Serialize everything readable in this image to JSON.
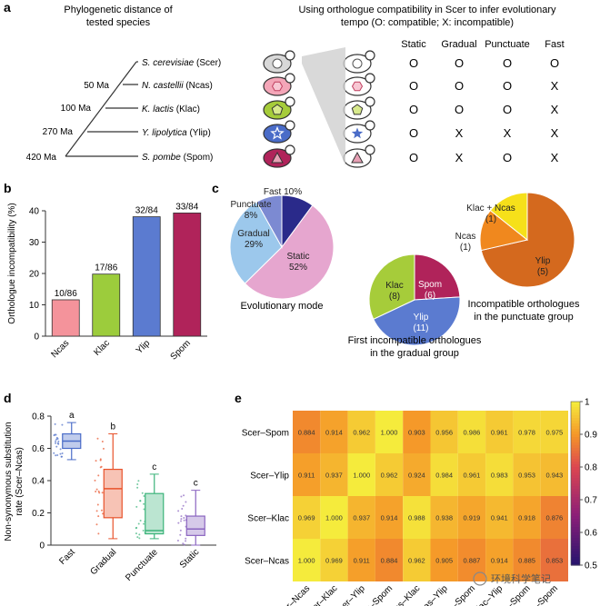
{
  "panel_a": {
    "letter": "a",
    "title_left_1": "Phylogenetic distance of",
    "title_left_2": "tested species",
    "title_right_1": "Using orthologue compatibility in Scer to infer evolutionary",
    "title_right_2": "tempo (O: compatible; X: incompatible)",
    "times": [
      "50 Ma",
      "100 Ma",
      "270 Ma",
      "420 Ma"
    ],
    "species": [
      {
        "italic": "S. cerevisiae",
        "abbr": " (Scer)"
      },
      {
        "italic": "N. castellii",
        "abbr": " (Ncas)"
      },
      {
        "italic": "K. lactis",
        "abbr": " (Klac)"
      },
      {
        "italic": "Y. lipolytica",
        "abbr": " (Ylip)"
      },
      {
        "italic": "S. pombe",
        "abbr": " (Spom)"
      }
    ],
    "columns": [
      "Static",
      "Gradual",
      "Punctuate",
      "Fast"
    ],
    "table": [
      [
        "O",
        "O",
        "O",
        "O"
      ],
      [
        "O",
        "O",
        "O",
        "X"
      ],
      [
        "O",
        "O",
        "O",
        "X"
      ],
      [
        "O",
        "X",
        "X",
        "X"
      ],
      [
        "O",
        "X",
        "O",
        "X"
      ]
    ],
    "cell_colors": [
      "#d8d8d8",
      "#f4a6b8",
      "#a6cc3a",
      "#4a6cc8",
      "#b0235a"
    ]
  },
  "panel_b": {
    "letter": "b",
    "chart_data": {
      "type": "bar",
      "categories": [
        "Ncas",
        "Klac",
        "Ylip",
        "Spom"
      ],
      "values": [
        11.6,
        19.8,
        38.1,
        39.3
      ],
      "bar_labels": [
        "10/86",
        "17/86",
        "32/84",
        "33/84"
      ],
      "colors": [
        "#f4939b",
        "#9ccc3c",
        "#5b7bd0",
        "#b0235a"
      ],
      "ylabel": "Orthologue incompatibility (%)",
      "ylim": [
        0,
        40
      ],
      "yticks": [
        "0",
        "10",
        "20",
        "30",
        "40"
      ]
    }
  },
  "panel_c": {
    "letter": "c",
    "pies": [
      {
        "caption": "Evolutionary mode",
        "chart_data": {
          "type": "pie",
          "labels": [
            "Static",
            "Gradual",
            "Punctuate",
            "Fast"
          ],
          "values": [
            52,
            29,
            8,
            10
          ],
          "display": [
            "Static\n52%",
            "Gradual\n29%",
            "Punctuate\n8%",
            "Fast 10%"
          ],
          "colors": [
            "#e6a6cf",
            "#9cc8ec",
            "#7c8ad2",
            "#2a2a8a"
          ]
        }
      },
      {
        "caption_1": "First incompatible orthologues",
        "caption_2": "in the gradual group",
        "chart_data": {
          "type": "pie",
          "labels": [
            "Spom",
            "Ylip",
            "Klac"
          ],
          "values": [
            6,
            11,
            8
          ],
          "display": [
            "Spom\n(6)",
            "Ylip\n(11)",
            "Klac\n(8)"
          ],
          "colors": [
            "#b0235a",
            "#5b7bd0",
            "#a6cc3a"
          ]
        }
      },
      {
        "caption_1": "Incompatible orthologues",
        "caption_2": "in the punctuate group",
        "chart_data": {
          "type": "pie",
          "labels": [
            "Ylip",
            "Ncas",
            "Klac + Ncas"
          ],
          "values": [
            5,
            1,
            1
          ],
          "display": [
            "Ylip\n(5)",
            "Ncas\n(1)",
            "Klac + Ncas\n(1)"
          ],
          "colors": [
            "#d4691e",
            "#f0881e",
            "#f6e01a"
          ]
        }
      }
    ]
  },
  "panel_d": {
    "letter": "d",
    "chart_data": {
      "type": "box",
      "categories": [
        "Fast",
        "Gradual",
        "Punctuate",
        "Static"
      ],
      "letters": [
        "a",
        "b",
        "c",
        "c"
      ],
      "colors": [
        "#4a6cc8",
        "#e8522a",
        "#3cb47a",
        "#8a64c0"
      ],
      "boxes": [
        {
          "whisker_low": 0.53,
          "q1": 0.6,
          "median": 0.645,
          "q3": 0.69,
          "whisker_high": 0.76
        },
        {
          "whisker_low": 0.04,
          "q1": 0.17,
          "median": 0.35,
          "q3": 0.47,
          "whisker_high": 0.69
        },
        {
          "whisker_low": 0.04,
          "q1": 0.07,
          "median": 0.09,
          "q3": 0.32,
          "whisker_high": 0.44
        },
        {
          "whisker_low": 0.0,
          "q1": 0.06,
          "median": 0.1,
          "q3": 0.18,
          "whisker_high": 0.34
        }
      ],
      "ylabel_1": "Non-synonymous substitution",
      "ylabel_2": "rate (Scer–Ncas)",
      "ylim": [
        0,
        0.8
      ],
      "yticks": [
        "0",
        "0.2",
        "0.4",
        "0.6",
        "0.8"
      ]
    }
  },
  "panel_e": {
    "letter": "e",
    "chart_data": {
      "type": "heatmap",
      "rows": [
        "Scer–Spom",
        "Scer–Ylip",
        "Scer–Klac",
        "Scer–Ncas"
      ],
      "cols": [
        "Scer–Ncas",
        "Scer–Klac",
        "Scer–Ylip",
        "Scer–Spom",
        "Ncas–Klac",
        "Ncas–Ylip",
        "Ncas–Spom",
        "Klac–Ylip",
        "Klac–Spom",
        "Ylip–Spom"
      ],
      "values": [
        [
          0.884,
          0.914,
          0.962,
          1.0,
          0.903,
          0.956,
          0.986,
          0.961,
          0.978,
          0.975
        ],
        [
          0.911,
          0.937,
          1.0,
          0.962,
          0.924,
          0.984,
          0.961,
          0.983,
          0.953,
          0.943
        ],
        [
          0.969,
          1.0,
          0.937,
          0.914,
          0.988,
          0.938,
          0.919,
          0.941,
          0.918,
          0.876
        ],
        [
          1.0,
          0.969,
          0.911,
          0.884,
          0.962,
          0.905,
          0.887,
          0.914,
          0.885,
          0.853
        ]
      ],
      "labels": [
        [
          "0.884",
          "0.914",
          "0.962",
          "1.000",
          "0.903",
          "0.956",
          "0.986",
          "0.961",
          "0.978",
          "0.975"
        ],
        [
          "0.911",
          "0.937",
          "1.000",
          "0.962",
          "0.924",
          "0.984",
          "0.961",
          "0.983",
          "0.953",
          "0.943"
        ],
        [
          "0.969",
          "1.000",
          "0.937",
          "0.914",
          "0.988",
          "0.938",
          "0.919",
          "0.941",
          "0.918",
          "0.876"
        ],
        [
          "1.000",
          "0.969",
          "0.911",
          "0.884",
          "0.962",
          "0.905",
          "0.887",
          "0.914",
          "0.885",
          "0.853"
        ]
      ],
      "colorbar_range": [
        0.5,
        1
      ],
      "colorbar_ticks": [
        "0.5",
        "0.6",
        "0.7",
        "0.8",
        "0.9",
        "1"
      ]
    }
  },
  "watermark": "环境科学笔记"
}
